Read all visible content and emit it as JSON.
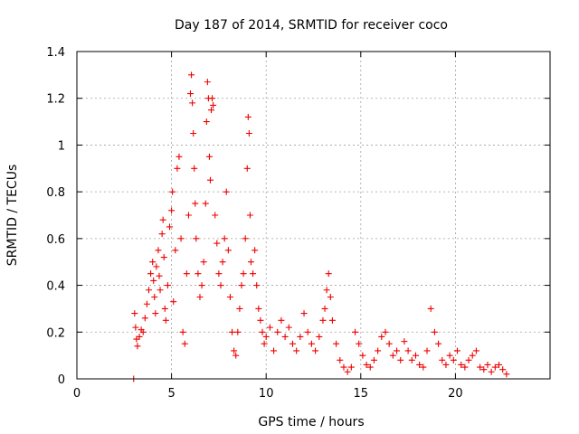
{
  "chart_data": {
    "type": "scatter",
    "title": "Day 187 of 2014, SRMTID for receiver coco",
    "xlabel": "GPS time / hours",
    "ylabel": "SRMTID / TECUs",
    "xlim": [
      0,
      25
    ],
    "ylim": [
      0,
      1.4
    ],
    "xticks": [
      0,
      5,
      10,
      15,
      20
    ],
    "yticks": [
      0,
      0.2,
      0.4,
      0.6,
      0.8,
      1,
      1.2,
      1.4
    ],
    "ytick_labels": [
      "0",
      "0.2",
      "0.4",
      "0.6",
      "0.8",
      "1",
      "1.2",
      "1.4"
    ],
    "grid": true,
    "marker": "+",
    "color": "#ee0000",
    "series": [
      {
        "name": "SRMTID",
        "x": [
          3.0,
          3.05,
          3.1,
          3.15,
          3.2,
          3.3,
          3.4,
          3.5,
          3.6,
          3.7,
          3.8,
          3.9,
          4.0,
          4.05,
          4.1,
          4.15,
          4.2,
          4.3,
          4.35,
          4.4,
          4.5,
          4.55,
          4.6,
          4.65,
          4.7,
          4.8,
          4.9,
          5.0,
          5.05,
          5.1,
          5.2,
          5.3,
          5.4,
          5.5,
          5.6,
          5.7,
          5.8,
          5.9,
          6.0,
          6.05,
          6.1,
          6.15,
          6.2,
          6.25,
          6.3,
          6.4,
          6.5,
          6.6,
          6.7,
          6.8,
          6.85,
          6.9,
          6.95,
          7.0,
          7.05,
          7.1,
          7.15,
          7.2,
          7.3,
          7.4,
          7.5,
          7.6,
          7.7,
          7.8,
          7.9,
          8.0,
          8.1,
          8.2,
          8.3,
          8.4,
          8.5,
          8.6,
          8.7,
          8.8,
          8.9,
          9.0,
          9.05,
          9.1,
          9.15,
          9.2,
          9.3,
          9.4,
          9.5,
          9.6,
          9.7,
          9.8,
          9.9,
          10.0,
          10.2,
          10.4,
          10.6,
          10.8,
          11.0,
          11.2,
          11.4,
          11.6,
          11.8,
          12.0,
          12.2,
          12.4,
          12.6,
          12.8,
          13.0,
          13.1,
          13.2,
          13.3,
          13.4,
          13.5,
          13.7,
          13.9,
          14.1,
          14.3,
          14.5,
          14.7,
          14.9,
          15.1,
          15.3,
          15.5,
          15.7,
          15.9,
          16.1,
          16.3,
          16.5,
          16.7,
          16.9,
          17.1,
          17.3,
          17.5,
          17.7,
          17.9,
          18.1,
          18.3,
          18.5,
          18.7,
          18.9,
          19.1,
          19.3,
          19.5,
          19.7,
          19.9,
          20.1,
          20.3,
          20.5,
          20.7,
          20.9,
          21.1,
          21.3,
          21.5,
          21.7,
          21.9,
          22.1,
          22.3,
          22.5,
          22.7
        ],
        "y": [
          0.0,
          0.28,
          0.22,
          0.17,
          0.14,
          0.18,
          0.21,
          0.2,
          0.26,
          0.32,
          0.38,
          0.45,
          0.5,
          0.42,
          0.35,
          0.28,
          0.48,
          0.55,
          0.44,
          0.38,
          0.62,
          0.68,
          0.52,
          0.3,
          0.25,
          0.4,
          0.65,
          0.72,
          0.8,
          0.33,
          0.55,
          0.9,
          0.95,
          0.6,
          0.2,
          0.15,
          0.45,
          0.7,
          1.22,
          1.3,
          1.18,
          1.05,
          0.9,
          0.75,
          0.6,
          0.45,
          0.35,
          0.4,
          0.5,
          0.75,
          1.1,
          1.27,
          1.2,
          0.95,
          0.85,
          1.15,
          1.2,
          1.17,
          0.7,
          0.58,
          0.45,
          0.4,
          0.5,
          0.6,
          0.8,
          0.55,
          0.35,
          0.2,
          0.12,
          0.1,
          0.2,
          0.3,
          0.4,
          0.45,
          0.6,
          0.9,
          1.12,
          1.05,
          0.7,
          0.5,
          0.45,
          0.55,
          0.4,
          0.3,
          0.25,
          0.2,
          0.15,
          0.18,
          0.22,
          0.12,
          0.2,
          0.25,
          0.18,
          0.22,
          0.15,
          0.12,
          0.18,
          0.28,
          0.2,
          0.15,
          0.12,
          0.18,
          0.25,
          0.3,
          0.38,
          0.45,
          0.35,
          0.25,
          0.15,
          0.08,
          0.05,
          0.03,
          0.05,
          0.2,
          0.15,
          0.1,
          0.06,
          0.05,
          0.08,
          0.12,
          0.18,
          0.2,
          0.15,
          0.1,
          0.12,
          0.08,
          0.16,
          0.12,
          0.08,
          0.1,
          0.06,
          0.05,
          0.12,
          0.3,
          0.2,
          0.15,
          0.08,
          0.06,
          0.1,
          0.08,
          0.12,
          0.06,
          0.05,
          0.08,
          0.1,
          0.12,
          0.05,
          0.04,
          0.06,
          0.03,
          0.05,
          0.06,
          0.04,
          0.02
        ]
      }
    ]
  }
}
